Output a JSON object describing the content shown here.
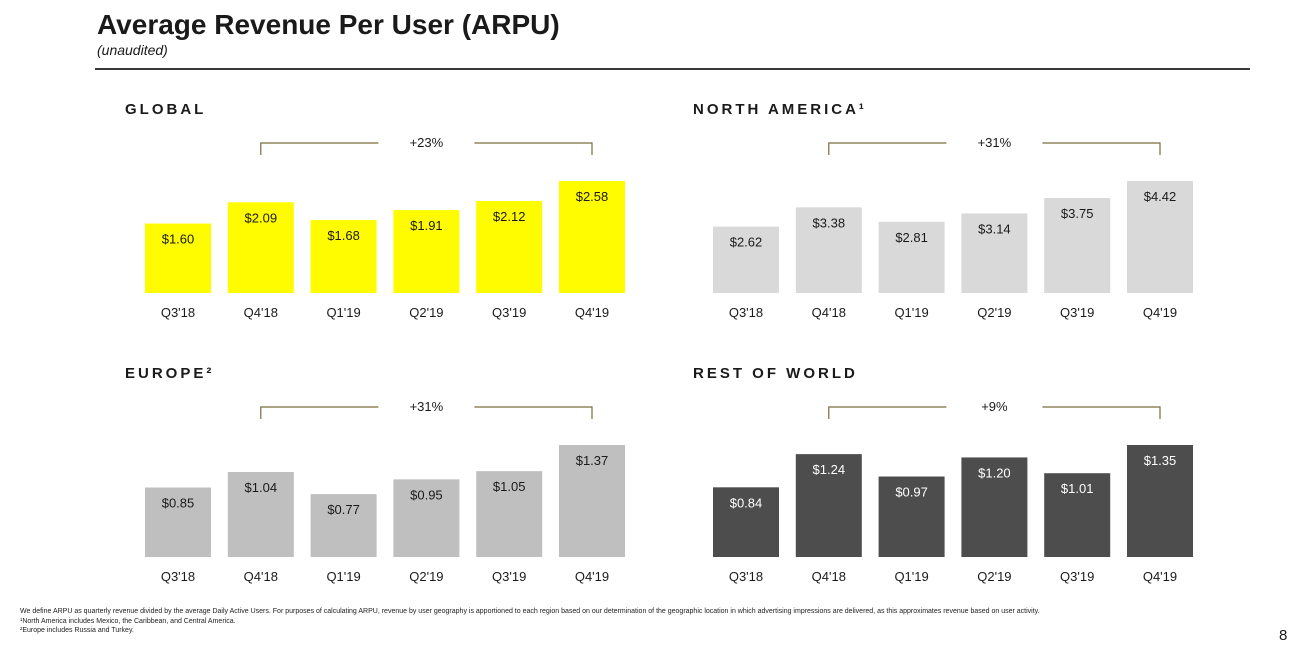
{
  "page": {
    "title": "Average Revenue Per User (ARPU)",
    "subtitle": "(unaudited)",
    "page_number": "8"
  },
  "footnotes": {
    "definition": "We define ARPU as quarterly revenue divided by the average Daily Active Users. For purposes of calculating ARPU, revenue by user geography is apportioned to each region based on our determination of the geographic location in which advertising impressions are delivered, as this approximates revenue based on user activity.",
    "note1": "¹North America includes Mexico, the Caribbean, and Central America.",
    "note2": "²Europe includes Russia and Turkey."
  },
  "chart_data": [
    {
      "type": "bar",
      "title": "GLOBAL",
      "categories": [
        "Q3'18",
        "Q4'18",
        "Q1'19",
        "Q2'19",
        "Q3'19",
        "Q4'19"
      ],
      "values": [
        1.6,
        2.09,
        1.68,
        1.91,
        2.12,
        2.58
      ],
      "labels": [
        "$1.60",
        "$2.09",
        "$1.68",
        "$1.91",
        "$2.12",
        "$2.58"
      ],
      "growth_label": "+23%",
      "bar_color": "#FFFC00",
      "ylim": [
        0,
        2.58
      ],
      "grid": false
    },
    {
      "type": "bar",
      "title": "NORTH AMERICA¹",
      "categories": [
        "Q3'18",
        "Q4'18",
        "Q1'19",
        "Q2'19",
        "Q3'19",
        "Q4'19"
      ],
      "values": [
        2.62,
        3.38,
        2.81,
        3.14,
        3.75,
        4.42
      ],
      "labels": [
        "$2.62",
        "$3.38",
        "$2.81",
        "$3.14",
        "$3.75",
        "$4.42"
      ],
      "growth_label": "+31%",
      "bar_color": "#D9D9D9",
      "ylim": [
        0,
        4.42
      ],
      "grid": false
    },
    {
      "type": "bar",
      "title": "EUROPE²",
      "categories": [
        "Q3'18",
        "Q4'18",
        "Q1'19",
        "Q2'19",
        "Q3'19",
        "Q4'19"
      ],
      "values": [
        0.85,
        1.04,
        0.77,
        0.95,
        1.05,
        1.37
      ],
      "labels": [
        "$0.85",
        "$1.04",
        "$0.77",
        "$0.95",
        "$1.05",
        "$1.37"
      ],
      "growth_label": "+31%",
      "bar_color": "#BFBFBF",
      "ylim": [
        0,
        1.37
      ],
      "grid": false
    },
    {
      "type": "bar",
      "title": "REST OF WORLD",
      "categories": [
        "Q3'18",
        "Q4'18",
        "Q1'19",
        "Q2'19",
        "Q3'19",
        "Q4'19"
      ],
      "values": [
        0.84,
        1.24,
        0.97,
        1.2,
        1.01,
        1.35
      ],
      "labels": [
        "$0.84",
        "$1.24",
        "$0.97",
        "$1.20",
        "$1.01",
        "$1.35"
      ],
      "growth_label": "+9%",
      "bar_color": "#4D4D4D",
      "label_color": "#FFFFFF",
      "ylim": [
        0,
        1.35
      ],
      "grid": false
    }
  ],
  "colors": {
    "bracket": "#7A6A3A",
    "text": "#1A1A1A",
    "rule": "#3A3A3A"
  }
}
